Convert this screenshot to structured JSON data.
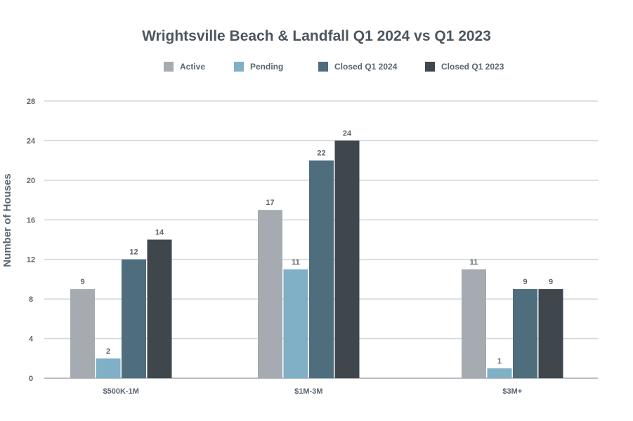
{
  "chart_data": {
    "type": "bar",
    "title": "Wrightsville Beach & Landfall Q1 2024 vs Q1 2023",
    "ylabel": "Number of Houses",
    "xlabel": "",
    "categories": [
      "$500K-1M",
      "$1M-3M",
      "$3M+"
    ],
    "series": [
      {
        "name": "Active",
        "values": [
          9,
          17,
          11
        ],
        "color": "#a5abb0"
      },
      {
        "name": "Pending",
        "values": [
          2,
          11,
          1
        ],
        "color": "#7fb0c6"
      },
      {
        "name": "Closed Q1 2024",
        "values": [
          12,
          22,
          9
        ],
        "color": "#4e6e7d"
      },
      {
        "name": "Closed Q1 2023",
        "values": [
          14,
          24,
          9
        ],
        "color": "#3f464c"
      }
    ],
    "ylim": [
      0,
      28
    ],
    "yticks": [
      0,
      4,
      8,
      12,
      16,
      20,
      24,
      28
    ],
    "grid": true,
    "legend_position": "top"
  },
  "colors": {
    "title": "#4b5660",
    "grid": "#d4d7da",
    "axis_text": "#5a6570"
  }
}
